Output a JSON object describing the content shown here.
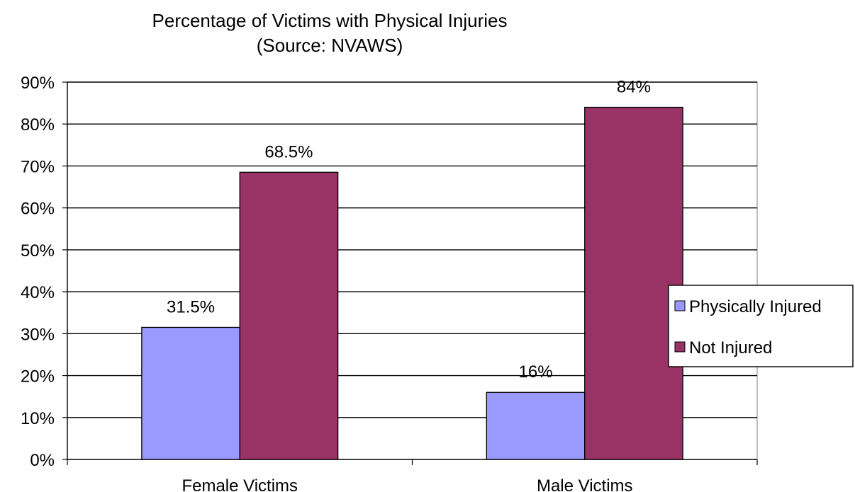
{
  "chart_data": {
    "type": "bar",
    "title": "Percentage of Victims with Physical Injuries",
    "subtitle": "(Source:  NVAWS)",
    "categories": [
      "Female Victims",
      "Male Victims"
    ],
    "series": [
      {
        "name": "Physically Injured",
        "values": [
          31.5,
          16
        ],
        "labels": [
          "31.5%",
          "16%"
        ],
        "color": "#9999ff"
      },
      {
        "name": "Not Injured",
        "values": [
          68.5,
          84
        ],
        "labels": [
          "68.5%",
          "84%"
        ],
        "color": "#993366"
      }
    ],
    "xlabel": "",
    "ylabel": "",
    "ylim": [
      0,
      90
    ],
    "yticks": [
      0,
      10,
      20,
      30,
      40,
      50,
      60,
      70,
      80,
      90
    ],
    "ytick_labels": [
      "0%",
      "10%",
      "20%",
      "30%",
      "40%",
      "50%",
      "60%",
      "70%",
      "80%",
      "90%"
    ],
    "grid": true,
    "legend_position": "right"
  }
}
